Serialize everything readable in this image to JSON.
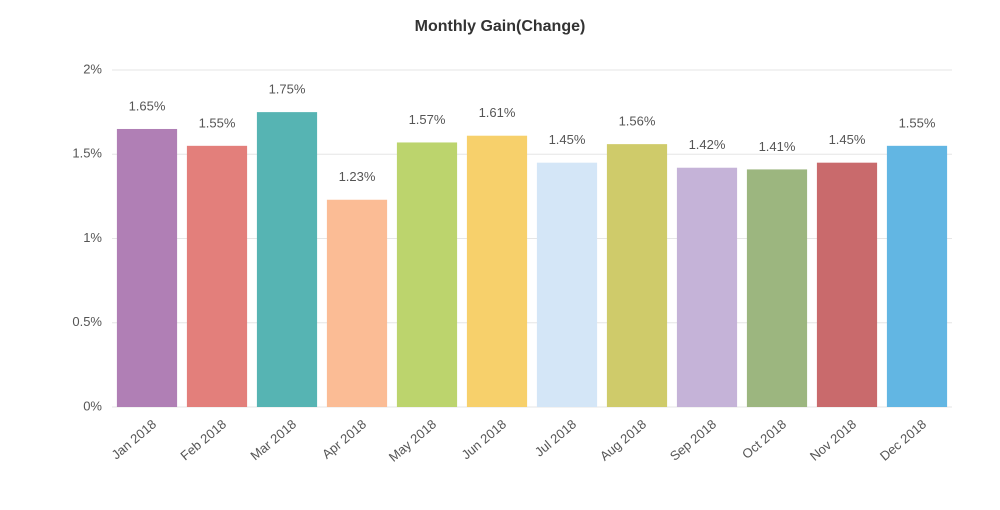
{
  "chart_data": {
    "type": "bar",
    "title": "Monthly Gain(Change)",
    "categories": [
      "Jan 2018",
      "Feb 2018",
      "Mar 2018",
      "Apr 2018",
      "May 2018",
      "Jun 2018",
      "Jul 2018",
      "Aug 2018",
      "Sep 2018",
      "Oct 2018",
      "Nov 2018",
      "Dec 2018"
    ],
    "values": [
      1.65,
      1.55,
      1.75,
      1.23,
      1.57,
      1.61,
      1.45,
      1.56,
      1.42,
      1.41,
      1.45,
      1.55
    ],
    "value_labels": [
      "1.65%",
      "1.55%",
      "1.75%",
      "1.23%",
      "1.57%",
      "1.61%",
      "1.45%",
      "1.56%",
      "1.42%",
      "1.41%",
      "1.45%",
      "1.55%"
    ],
    "colors": [
      "#b07fb5",
      "#e37f7b",
      "#56b4b3",
      "#fbbc95",
      "#bcd46d",
      "#f7d06b",
      "#d4e6f7",
      "#cfcb6a",
      "#c5b3d8",
      "#9cb67f",
      "#c96a6c",
      "#62b6e3"
    ],
    "ylim": [
      0,
      2
    ],
    "yticks": [
      {
        "value": 0,
        "label": "0%"
      },
      {
        "value": 0.5,
        "label": "0.5%"
      },
      {
        "value": 1,
        "label": "1%"
      },
      {
        "value": 1.5,
        "label": "1.5%"
      },
      {
        "value": 2,
        "label": "2%"
      }
    ],
    "grid": true
  }
}
